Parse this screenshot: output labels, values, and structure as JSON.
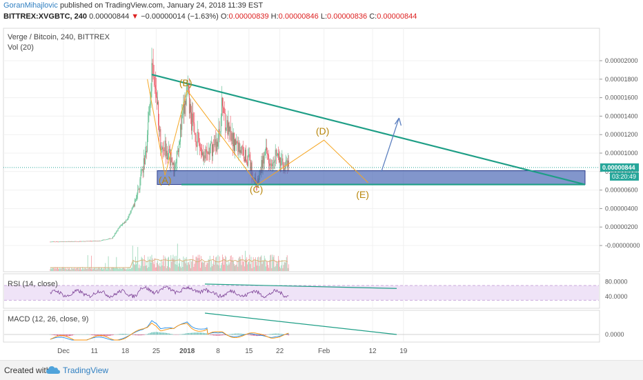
{
  "header": {
    "author": "GoranMihajlovic",
    "published_text": "published on TradingView.com, January 24, 2018 11:39 EST",
    "symbol": "BITTREX:XVGBTC, 240",
    "last": "0.00000844",
    "change_arrow": "▼",
    "change": "−0.00000014 (−1.63%)",
    "o_label": "O:",
    "o": "0.00000839",
    "h_label": "H:",
    "h": "0.00000846",
    "l_label": "L:",
    "l": "0.00000836",
    "c_label": "C:",
    "c": "0.00000844"
  },
  "footer": {
    "created_with": "Created with",
    "brand": "TradingView",
    "logo_icon": "tradingview-cloud-icon"
  },
  "colors": {
    "up": "#53b987",
    "down": "#eb4d5c",
    "triangle": "#1e9e86",
    "zone_fill": "#3f5eb0",
    "wave": "#f5a623",
    "projection": "#5b7fbf",
    "rsi": "#7b3f95",
    "macd_line": "#1e88e5",
    "signal_line": "#ff8f00",
    "price_tag": "#26a69a"
  },
  "chart_data": [
    {
      "type": "candlestick",
      "title": "Verge / Bitcoin, 240, BITTREX",
      "indicator": "Vol (20)",
      "x_ticks": [
        "Dec",
        "11",
        "18",
        "25",
        "2018",
        "8",
        "15",
        "22",
        "Feb",
        "12",
        "19"
      ],
      "y_ticks": [
        "0.00002000",
        "0.00001800",
        "0.00001600",
        "0.00001400",
        "0.00001200",
        "0.00001000",
        "0.00000800",
        "0.00000600",
        "0.00000400",
        "0.00000200",
        "-0.00000000"
      ],
      "ylim": [
        -3e-07,
        2.04e-05
      ],
      "last_price_tag": "0.00000844",
      "countdown": "03:20:49",
      "wave_labels": [
        "(A)",
        "(B)",
        "(C)",
        "(D)",
        "(E)"
      ],
      "price_path": [
        {
          "date": "2017-12-01",
          "close": 4e-07
        },
        {
          "date": "2017-12-08",
          "close": 4.5e-07
        },
        {
          "date": "2017-12-12",
          "close": 5e-07
        },
        {
          "date": "2017-12-15",
          "close": 8e-07
        },
        {
          "date": "2017-12-17",
          "close": 2.2e-06
        },
        {
          "date": "2017-12-18",
          "close": 2.6e-06
        },
        {
          "date": "2017-12-19",
          "close": 3.3e-06
        },
        {
          "date": "2017-12-20",
          "close": 4.5e-06
        },
        {
          "date": "2017-12-21",
          "close": 6.2e-06
        },
        {
          "date": "2017-12-22",
          "close": 8.2e-06
        },
        {
          "date": "2017-12-23",
          "close": 1.17e-05
        },
        {
          "date": "2017-12-24",
          "close": 1.85e-05
        },
        {
          "date": "2017-12-25",
          "close": 1.65e-05
        },
        {
          "date": "2017-12-26",
          "close": 1.13e-05
        },
        {
          "date": "2017-12-27",
          "close": 1.08e-05
        },
        {
          "date": "2017-12-28",
          "close": 9.7e-06
        },
        {
          "date": "2017-12-29",
          "close": 8.2e-06
        },
        {
          "date": "2017-12-30",
          "close": 1.1e-05
        },
        {
          "date": "2018-01-01",
          "close": 1.65e-05
        },
        {
          "date": "2018-01-02",
          "close": 1.35e-05
        },
        {
          "date": "2018-01-03",
          "close": 1.18e-05
        },
        {
          "date": "2018-01-05",
          "close": 9.5e-06
        },
        {
          "date": "2018-01-07",
          "close": 1.08e-05
        },
        {
          "date": "2018-01-08",
          "close": 1.12e-05
        },
        {
          "date": "2018-01-09",
          "close": 1.55e-05
        },
        {
          "date": "2018-01-10",
          "close": 1.27e-05
        },
        {
          "date": "2018-01-11",
          "close": 1.15e-05
        },
        {
          "date": "2018-01-13",
          "close": 1.05e-05
        },
        {
          "date": "2018-01-15",
          "close": 9.2e-06
        },
        {
          "date": "2018-01-16",
          "close": 7.4e-06
        },
        {
          "date": "2018-01-17",
          "close": 6.7e-06
        },
        {
          "date": "2018-01-18",
          "close": 9e-06
        },
        {
          "date": "2018-01-19",
          "close": 1e-05
        },
        {
          "date": "2018-01-20",
          "close": 9.2e-06
        },
        {
          "date": "2018-01-21",
          "close": 1.01e-05
        },
        {
          "date": "2018-01-22",
          "close": 9e-06
        },
        {
          "date": "2018-01-23",
          "close": 8.7e-06
        },
        {
          "date": "2018-01-24",
          "close": 8.44e-06
        }
      ],
      "support_zone": {
        "low": 6.6e-06,
        "high": 8.1e-06
      },
      "triangle_top": [
        {
          "date": "2017-12-24",
          "price": 1.85e-05
        },
        {
          "date": "2018-02-24",
          "price": 6.6e-06
        }
      ],
      "triangle_bottom": [
        {
          "date": "2017-12-19",
          "price": 6.6e-06
        },
        {
          "date": "2018-02-24",
          "price": 6.6e-06
        }
      ],
      "wave_points": [
        {
          "label": "(A)",
          "date": "2017-12-27",
          "price": 7.6e-06
        },
        {
          "label": "(B)",
          "date": "2018-01-01",
          "price": 1.68e-05
        },
        {
          "label": "(C)",
          "date": "2018-01-17",
          "price": 6.6e-06
        },
        {
          "label": "(D)",
          "date": "2018-02-01",
          "price": 1.14e-05
        },
        {
          "label": "(E)",
          "date": "2018-02-11",
          "price": 6.8e-06
        }
      ],
      "projection_arrow": [
        {
          "date": "2018-02-14",
          "price": 8e-06
        },
        {
          "date": "2018-02-18",
          "price": 1.38e-05
        }
      ]
    },
    {
      "type": "line",
      "title": "RSI (14, close)",
      "y_ticks": [
        "80.0000",
        "40.0000"
      ],
      "ylim": [
        10,
        100
      ],
      "bands": [
        30,
        70
      ]
    },
    {
      "type": "line",
      "title": "MACD (12, 26, close, 9)",
      "y_ticks": [
        "0.0000"
      ]
    }
  ]
}
